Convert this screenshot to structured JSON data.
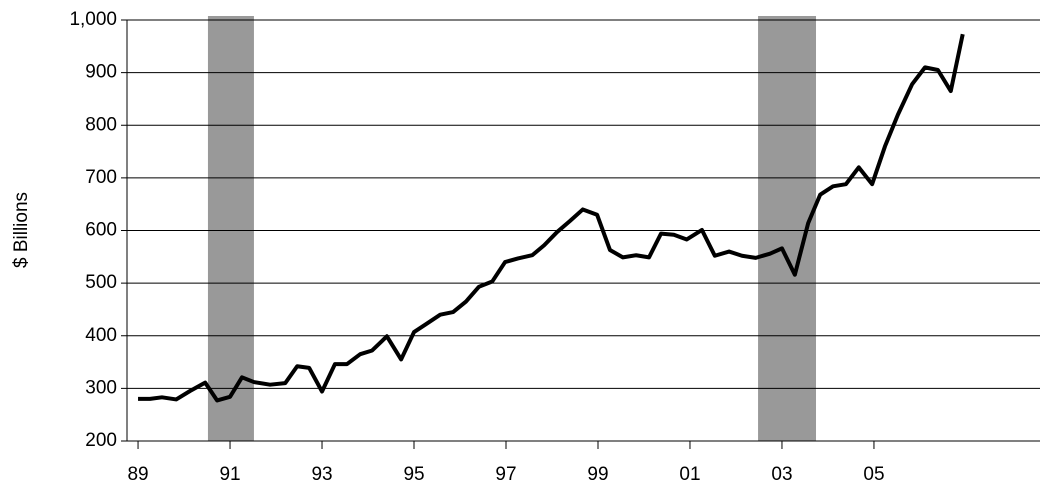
{
  "chart_data": {
    "type": "line",
    "y_label": "$ Billions",
    "x": [
      1989.0,
      1989.26,
      1989.52,
      1989.83,
      1990.13,
      1990.46,
      1990.72,
      1991.0,
      1991.26,
      1991.52,
      1991.87,
      1992.2,
      1992.46,
      1992.72,
      1993.0,
      1993.28,
      1993.54,
      1993.83,
      1994.09,
      1994.41,
      1994.72,
      1995.0,
      1995.26,
      1995.57,
      1995.85,
      1996.13,
      1996.41,
      1996.7,
      1996.98,
      1997.26,
      1997.57,
      1997.83,
      1998.11,
      1998.39,
      1998.67,
      1998.98,
      1999.26,
      1999.54,
      1999.83,
      2000.11,
      2000.37,
      2000.65,
      2000.93,
      2001.26,
      2001.54,
      2001.85,
      2002.13,
      2002.43,
      2002.74,
      2003.0,
      2003.28,
      2003.57,
      2003.83,
      2004.11,
      2004.39,
      2004.67,
      2004.96,
      2005.24,
      2005.52,
      2005.83,
      2006.11,
      2006.39,
      2006.67,
      2006.93
    ],
    "series": [
      {
        "color": "#000000",
        "values": [
          280,
          280,
          283,
          279,
          295,
          311,
          277,
          284,
          321,
          312,
          307,
          310,
          342,
          339,
          294,
          346,
          346,
          365,
          372,
          399,
          355,
          407,
          422,
          440,
          445,
          465,
          493,
          503,
          540,
          547,
          553,
          572,
          597,
          618,
          640,
          630,
          563,
          549,
          553,
          549,
          594,
          592,
          583,
          601,
          552,
          560,
          552,
          548,
          556,
          566,
          516,
          614,
          668,
          684,
          688,
          720,
          688,
          760,
          820,
          878,
          910,
          905,
          865,
          973
        ]
      }
    ],
    "shaded_periods": [
      [
        1990.52,
        1991.52
      ],
      [
        2002.48,
        2003.74
      ]
    ],
    "shade_color": "#999999",
    "xlim": [
      1988.76,
      2008.61
    ],
    "xticks": [
      {
        "value": 1989,
        "label": "89"
      },
      {
        "value": 1991,
        "label": "91"
      },
      {
        "value": 1993,
        "label": "93"
      },
      {
        "value": 1995,
        "label": "95"
      },
      {
        "value": 1997,
        "label": "97"
      },
      {
        "value": 1999,
        "label": "99"
      },
      {
        "value": 2001,
        "label": "01"
      },
      {
        "value": 2003,
        "label": "03"
      },
      {
        "value": 2005,
        "label": "05"
      }
    ],
    "ylim": [
      200,
      1000
    ],
    "yticks": [
      200,
      300,
      400,
      500,
      600,
      700,
      800,
      900,
      {
        "value": 1000,
        "label": "1,000"
      }
    ],
    "grid": true
  }
}
